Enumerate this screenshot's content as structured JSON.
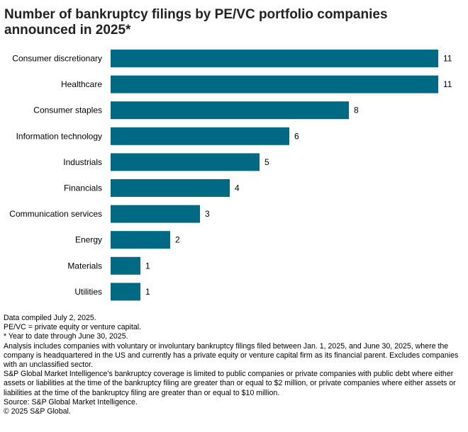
{
  "title": "Number of bankruptcy filings by PE/VC portfolio companies announced in 2025*",
  "chart_data": {
    "type": "bar",
    "orientation": "horizontal",
    "categories": [
      "Consumer discretionary",
      "Healthcare",
      "Consumer staples",
      "Information technology",
      "Industrials",
      "Financials",
      "Communication services",
      "Energy",
      "Materials",
      "Utilities"
    ],
    "values": [
      11,
      11,
      8,
      6,
      5,
      4,
      3,
      2,
      1,
      1
    ],
    "xlim": [
      0,
      11
    ],
    "bar_color": "#006983",
    "grid": false,
    "legend": "none"
  },
  "notes": {
    "compiled": "Data compiled July 2, 2025.",
    "pevc": "PE/VC = private equity or venture capital.",
    "ytd": "* Year to date through June 30, 2025.",
    "analysis": "Analysis includes companies with voluntary or involuntary bankruptcy filings filed between Jan. 1, 2025, and June 30, 2025, where the company is headquartered in the US and currently has a private equity or venture capital firm as its financial parent. Excludes companies with an unclassified sector.",
    "coverage": "S&P Global Market Intelligence's bankruptcy coverage is limited to public companies or private companies with public debt where either assets or liabilities at the time of the bankruptcy filing are greater than or equal to $2 million, or private companies where either assets or liabilities at the time of the bankruptcy filing are greater than or equal to $10 million.",
    "source": "Source: S&P Global Market Intelligence.",
    "copyright": "© 2025 S&P Global."
  }
}
